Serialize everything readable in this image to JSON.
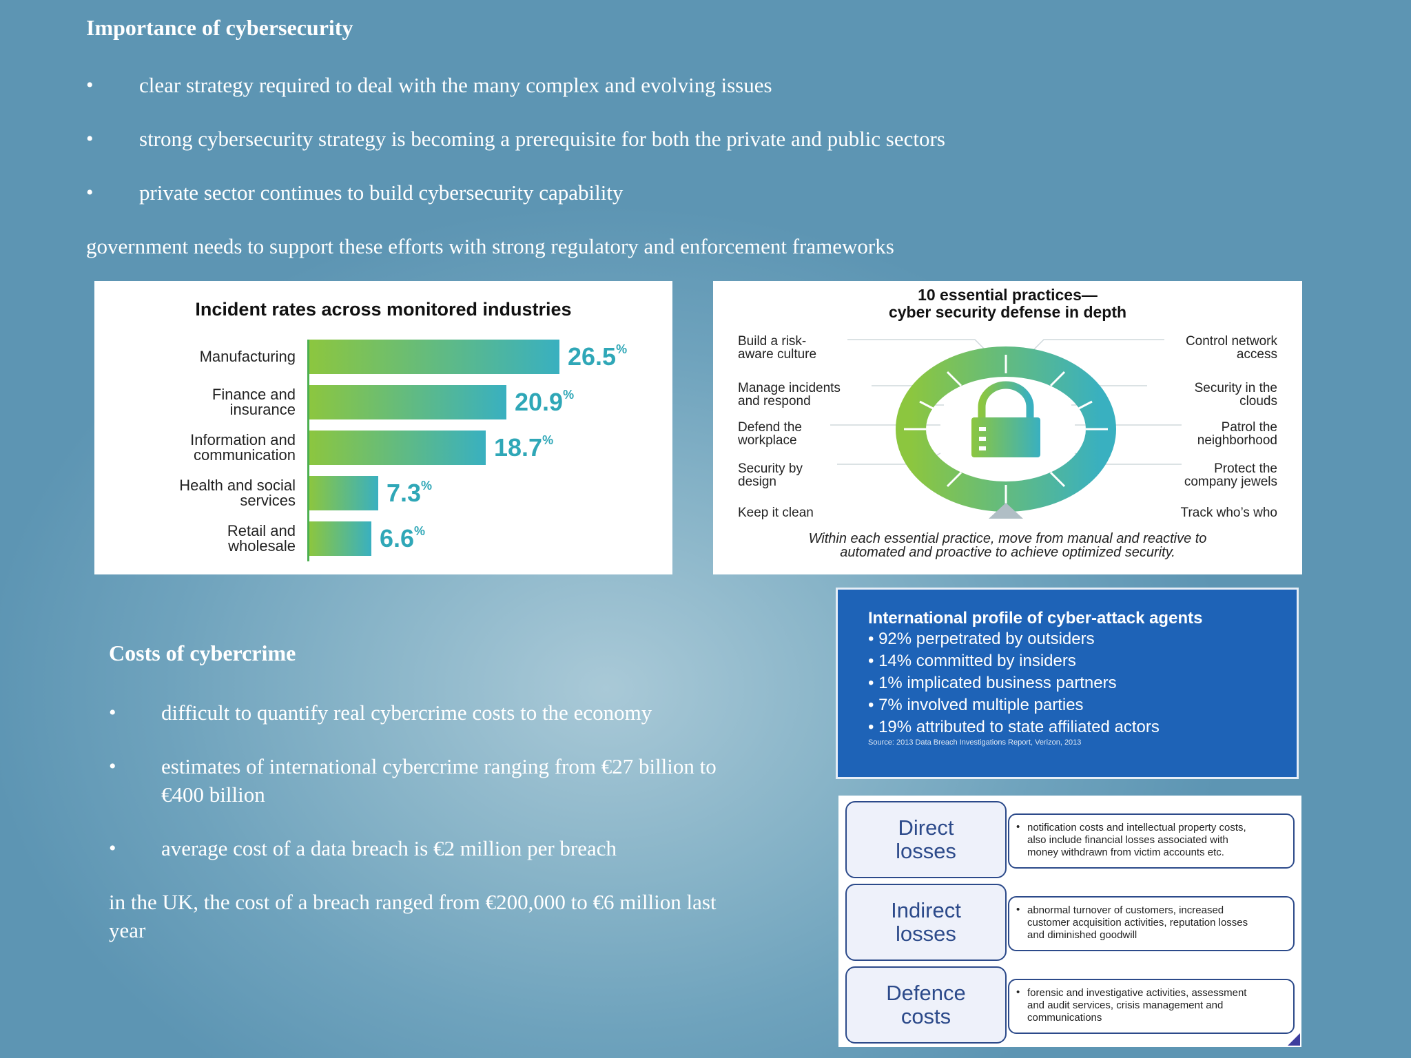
{
  "section1": {
    "title": "Importance of cybersecurity",
    "bullets": [
      "clear strategy required to deal with the many complex and evolving issues",
      "strong cybersecurity strategy is becoming a prerequisite for both the private and public sectors",
      "private sector continues to build cybersecurity capability"
    ],
    "paragraph": "government needs to support these efforts with strong regulatory and enforcement frameworks"
  },
  "chart_data": {
    "type": "bar",
    "title": "Incident rates across monitored industries",
    "categories": [
      "Manufacturing",
      "Finance and insurance",
      "Information and communication",
      "Health and social services",
      "Retail and wholesale"
    ],
    "category_lines": [
      [
        "Manufacturing"
      ],
      [
        "Finance and",
        "insurance"
      ],
      [
        "Information and",
        "communication"
      ],
      [
        "Health and social",
        "services"
      ],
      [
        "Retail and",
        "wholesale"
      ]
    ],
    "values": [
      26.5,
      20.9,
      18.7,
      7.3,
      6.6
    ],
    "value_labels": [
      "26.5",
      "20.9",
      "18.7",
      "7.3",
      "6.6"
    ],
    "unit": "%",
    "orientation": "horizontal",
    "xlim": [
      0,
      26.5
    ],
    "colors": {
      "start": "#8cc63f",
      "end": "#39b0c0",
      "label": "#2fa7b7"
    }
  },
  "practices": {
    "title_line1": "10 essential practices—",
    "title_line2": "cyber security defense in depth",
    "left": [
      [
        "Build a risk-",
        "aware culture"
      ],
      [
        "Manage incidents",
        "and respond"
      ],
      [
        "Defend the",
        "workplace"
      ],
      [
        "Security by",
        "design"
      ],
      [
        "Keep it clean"
      ]
    ],
    "right": [
      [
        "Control network",
        "access"
      ],
      [
        "Security in the",
        "clouds"
      ],
      [
        "Patrol the",
        "neighborhood"
      ],
      [
        "Protect the",
        "company jewels"
      ],
      [
        "Track who’s who"
      ]
    ],
    "caption_line1": "Within each essential practice, move from manual and reactive to",
    "caption_line2": "automated and proactive to achieve optimized security.",
    "icon": "lock-icon",
    "colors": {
      "ring_start": "#8cc63f",
      "ring_end": "#39b0c0"
    }
  },
  "profile": {
    "title": "International profile of cyber-attack agents",
    "items": [
      "92% perpetrated by outsiders",
      "14% committed by insiders",
      "1% implicated business partners",
      "7% involved multiple parties",
      "19% attributed to state affiliated actors"
    ],
    "source": "Source: 2013 Data Breach Investigations Report, Verizon, 2013",
    "color": "#1e63b7"
  },
  "section2": {
    "title": "Costs of cybercrime",
    "bullets": [
      "difficult to quantify real cybercrime costs to the economy",
      "estimates of international cybercrime ranging from €27 billion to",
      "average cost of a data breach is €2 million per breach"
    ],
    "bullet2_cont": "€400 billion",
    "paragraph_line1": "in the UK, the cost of a breach ranged  from €200,000 to €6 million last",
    "paragraph_line2": "year"
  },
  "losses": [
    {
      "name": [
        "Direct",
        "losses"
      ],
      "desc": [
        "notification costs and intellectual property costs,",
        "also include financial losses associated with",
        "money withdrawn from victim accounts etc."
      ]
    },
    {
      "name": [
        "Indirect",
        "losses"
      ],
      "desc": [
        "abnormal turnover of customers, increased",
        "customer acquisition activities, reputation losses",
        "and diminished goodwill"
      ]
    },
    {
      "name": [
        "Defence",
        "costs"
      ],
      "desc": [
        "forensic and investigative activities, assessment",
        "and audit services, crisis management and",
        "communications"
      ]
    }
  ]
}
